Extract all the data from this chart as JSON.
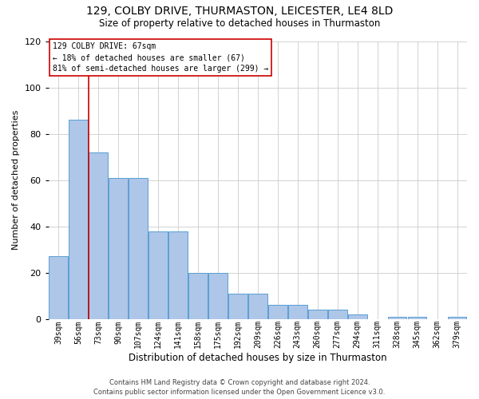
{
  "title": "129, COLBY DRIVE, THURMASTON, LEICESTER, LE4 8LD",
  "subtitle": "Size of property relative to detached houses in Thurmaston",
  "xlabel": "Distribution of detached houses by size in Thurmaston",
  "ylabel": "Number of detached properties",
  "categories": [
    "39sqm",
    "56sqm",
    "73sqm",
    "90sqm",
    "107sqm",
    "124sqm",
    "141sqm",
    "158sqm",
    "175sqm",
    "192sqm",
    "209sqm",
    "226sqm",
    "243sqm",
    "260sqm",
    "277sqm",
    "294sqm",
    "311sqm",
    "328sqm",
    "345sqm",
    "362sqm",
    "379sqm"
  ],
  "values": [
    27,
    86,
    72,
    61,
    61,
    38,
    38,
    20,
    20,
    11,
    11,
    6,
    6,
    4,
    4,
    2,
    0,
    1,
    1,
    0,
    1
  ],
  "bar_color": "#aec6e8",
  "bar_edge_color": "#5a9fd4",
  "property_line_color": "#cc0000",
  "property_line_x": 1.5,
  "ylim": [
    0,
    120
  ],
  "yticks": [
    0,
    20,
    40,
    60,
    80,
    100,
    120
  ],
  "annotation_text": "129 COLBY DRIVE: 67sqm\n← 18% of detached houses are smaller (67)\n81% of semi-detached houses are larger (299) →",
  "annotation_box_color": "#cc0000",
  "footer_line1": "Contains HM Land Registry data © Crown copyright and database right 2024.",
  "footer_line2": "Contains public sector information licensed under the Open Government Licence v3.0.",
  "background_color": "#ffffff",
  "grid_color": "#cccccc",
  "title_fontsize": 10,
  "subtitle_fontsize": 8.5,
  "ylabel_fontsize": 8,
  "xlabel_fontsize": 8.5,
  "tick_fontsize": 7,
  "annotation_fontsize": 7,
  "footer_fontsize": 6
}
